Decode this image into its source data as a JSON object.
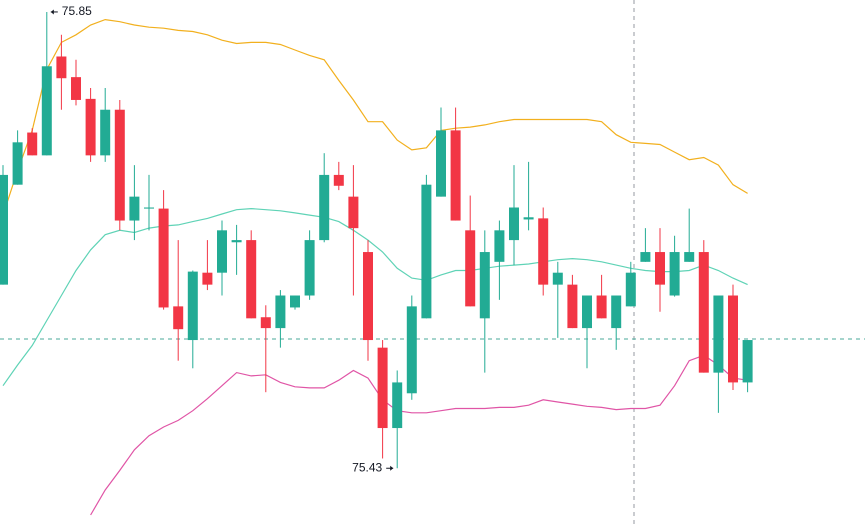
{
  "chart_data": {
    "type": "candlestick",
    "up_color": "#22ab94",
    "down_color": "#f23645",
    "ylim": [
      75.375,
      75.861
    ],
    "open": [
      75.599,
      75.691,
      75.739,
      75.718,
      75.809,
      75.79,
      75.77,
      75.718,
      75.76,
      75.658,
      75.669,
      75.669,
      75.579,
      75.548,
      75.61,
      75.61,
      75.638,
      75.64,
      75.569,
      75.559,
      75.578,
      75.589,
      75.64,
      75.7,
      75.68,
      75.629,
      75.541,
      75.467,
      75.499,
      75.568,
      75.68,
      75.741,
      75.649,
      75.568,
      75.62,
      75.64,
      75.659,
      75.66,
      75.599,
      75.599,
      75.559,
      75.589,
      75.559,
      75.579,
      75.62,
      75.629,
      75.589,
      75.62,
      75.629,
      75.518,
      75.589,
      75.509
    ],
    "high": [
      75.709,
      75.741,
      75.743,
      75.85,
      75.829,
      75.806,
      75.78,
      75.78,
      75.769,
      75.709,
      75.7,
      75.686,
      75.64,
      75.612,
      75.64,
      75.658,
      75.654,
      75.649,
      75.58,
      75.594,
      75.589,
      75.649,
      75.72,
      75.712,
      75.709,
      75.64,
      75.548,
      75.52,
      75.589,
      75.7,
      75.762,
      75.762,
      75.681,
      75.649,
      75.658,
      75.709,
      75.712,
      75.67,
      75.62,
      75.608,
      75.589,
      75.608,
      75.589,
      75.62,
      75.651,
      75.651,
      75.644,
      75.669,
      75.64,
      75.589,
      75.599,
      75.548
    ],
    "low": [
      75.599,
      75.691,
      75.718,
      75.718,
      75.76,
      75.764,
      75.712,
      75.712,
      75.649,
      75.64,
      75.649,
      75.576,
      75.529,
      75.522,
      75.594,
      75.589,
      75.608,
      75.568,
      75.5,
      75.541,
      75.576,
      75.585,
      75.638,
      75.686,
      75.589,
      75.529,
      75.439,
      75.43,
      75.493,
      75.568,
      75.68,
      75.658,
      75.579,
      75.518,
      75.585,
      75.617,
      75.649,
      75.589,
      75.55,
      75.559,
      75.522,
      75.568,
      75.539,
      75.579,
      75.62,
      75.574,
      75.588,
      75.62,
      75.518,
      75.481,
      75.502,
      75.5
    ],
    "close": [
      75.7,
      75.73,
      75.718,
      75.8,
      75.789,
      75.769,
      75.718,
      75.76,
      75.658,
      75.68,
      75.67,
      75.578,
      75.558,
      75.611,
      75.599,
      75.649,
      75.64,
      75.568,
      75.559,
      75.589,
      75.589,
      75.64,
      75.7,
      75.69,
      75.651,
      75.548,
      75.467,
      75.509,
      75.579,
      75.691,
      75.741,
      75.658,
      75.579,
      75.629,
      75.649,
      75.67,
      75.661,
      75.599,
      75.61,
      75.559,
      75.589,
      75.568,
      75.589,
      75.61,
      75.629,
      75.599,
      75.629,
      75.629,
      75.518,
      75.589,
      75.509,
      75.548
    ],
    "overlays": [
      {
        "color": "#f2b01e",
        "values": [
          75.663,
          75.704,
          75.741,
          75.797,
          75.822,
          75.829,
          75.838,
          75.843,
          75.841,
          75.838,
          75.836,
          75.835,
          75.833,
          75.832,
          75.829,
          75.824,
          75.821,
          75.822,
          75.822,
          75.82,
          75.815,
          75.81,
          75.806,
          75.787,
          75.769,
          75.749,
          75.749,
          75.732,
          75.723,
          75.725,
          75.741,
          75.743,
          75.744,
          75.746,
          75.749,
          75.751,
          75.751,
          75.751,
          75.751,
          75.751,
          75.751,
          75.749,
          75.737,
          75.73,
          75.729,
          75.728,
          75.721,
          75.714,
          75.716,
          75.709,
          75.691,
          75.683
        ]
      },
      {
        "color": "#5fd3b6",
        "values": [
          75.506,
          75.525,
          75.543,
          75.566,
          75.589,
          75.612,
          75.631,
          75.645,
          75.649,
          75.647,
          75.651,
          75.653,
          75.654,
          75.657,
          75.66,
          75.664,
          75.668,
          75.669,
          75.668,
          75.667,
          75.665,
          75.663,
          75.661,
          75.657,
          75.649,
          75.64,
          75.629,
          75.614,
          75.605,
          75.603,
          75.608,
          75.612,
          75.612,
          75.614,
          75.616,
          75.617,
          75.618,
          75.62,
          75.622,
          75.623,
          75.622,
          75.62,
          75.617,
          75.614,
          75.612,
          75.611,
          75.611,
          75.612,
          75.617,
          75.612,
          75.605,
          75.599
        ]
      },
      {
        "color": "#e055a6",
        "values": [
          null,
          null,
          null,
          null,
          null,
          null,
          75.387,
          75.41,
          75.428,
          75.447,
          75.46,
          75.468,
          75.474,
          75.483,
          75.494,
          75.506,
          75.518,
          75.515,
          75.516,
          75.509,
          75.505,
          75.504,
          75.504,
          75.511,
          75.52,
          75.513,
          75.493,
          75.483,
          75.481,
          75.481,
          75.483,
          75.485,
          75.485,
          75.485,
          75.486,
          75.486,
          75.488,
          75.493,
          75.491,
          75.489,
          75.487,
          75.486,
          75.484,
          75.485,
          75.485,
          75.488,
          75.506,
          75.529,
          75.534,
          75.525,
          75.513,
          75.511
        ]
      }
    ],
    "annotations": [
      "75.85",
      "75.43"
    ]
  }
}
